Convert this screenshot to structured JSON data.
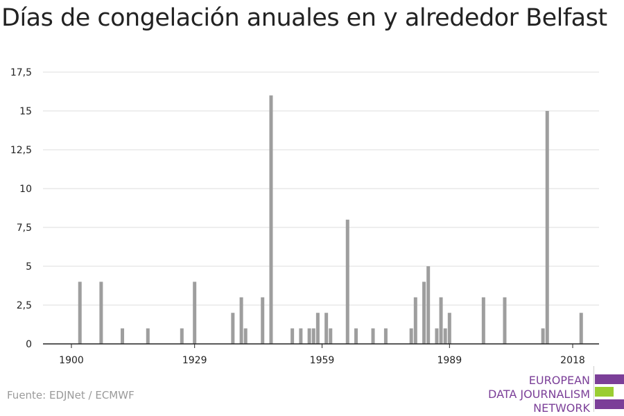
{
  "title": "Días de congelación anuales en y alrededor Belfast",
  "source": "Fuente: EDJNet / ECMWF",
  "logo": {
    "lines": [
      "EUROPEAN",
      "DATA JOURNALISM",
      "NETWORK"
    ],
    "colors": {
      "purple": "#7b3f98",
      "green": "#9acd32"
    }
  },
  "colors": {
    "bar": "#9e9e9e",
    "grid": "#dddddd",
    "axis": "#222222",
    "text": "#222222"
  },
  "chart_data": {
    "type": "bar",
    "xlabel": "",
    "ylabel": "",
    "x_ticks": [
      1900,
      1929,
      1959,
      1989,
      2018
    ],
    "x_tick_labels": [
      "1900",
      "1929",
      "1959",
      "1989",
      "2018"
    ],
    "y_ticks": [
      0,
      2.5,
      5,
      7.5,
      10,
      12.5,
      15,
      17.5
    ],
    "y_tick_labels": [
      "0",
      "2,5",
      "5",
      "7,5",
      "10",
      "12,5",
      "15",
      "17,5"
    ],
    "ylim": [
      0,
      17.5
    ],
    "xlim": [
      1894,
      2024
    ],
    "grid": true,
    "years": [
      1902,
      1907,
      1912,
      1918,
      1926,
      1929,
      1938,
      1940,
      1941,
      1945,
      1947,
      1952,
      1954,
      1956,
      1957,
      1958,
      1960,
      1961,
      1965,
      1967,
      1971,
      1974,
      1980,
      1981,
      1983,
      1984,
      1986,
      1987,
      1988,
      1989,
      1997,
      2002,
      2011,
      2012,
      2020
    ],
    "values": [
      4,
      4,
      1,
      1,
      1,
      4,
      2,
      3,
      1,
      3,
      16,
      1,
      1,
      1,
      1,
      2,
      2,
      1,
      8,
      1,
      1,
      1,
      1,
      3,
      4,
      5,
      1,
      3,
      1,
      2,
      3,
      3,
      1,
      15,
      2
    ]
  }
}
